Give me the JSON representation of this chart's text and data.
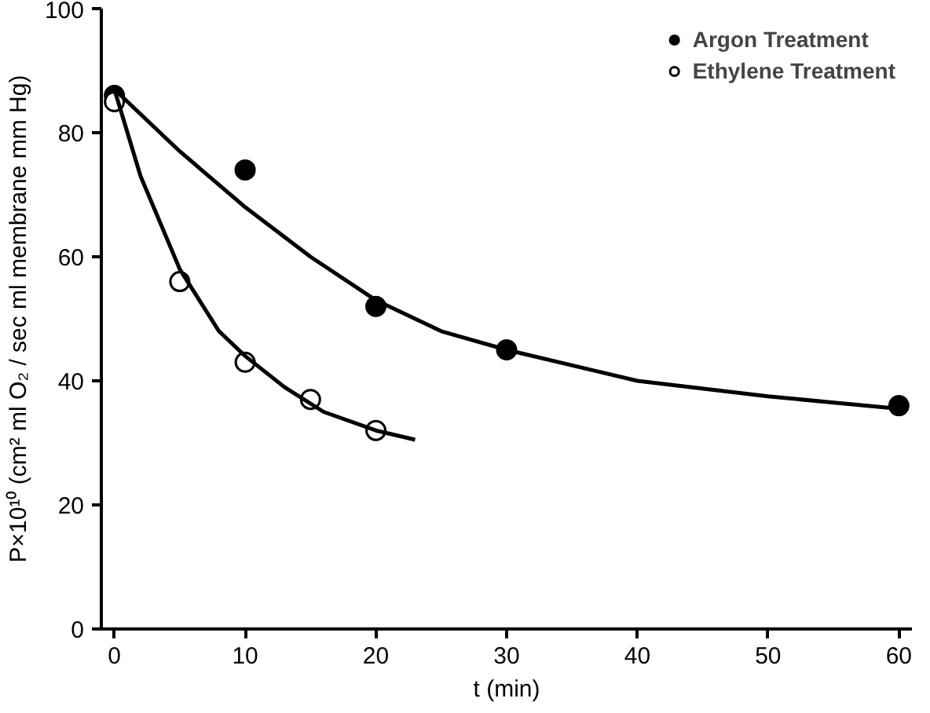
{
  "chart_data": {
    "type": "scatter",
    "xlabel": "t (min)",
    "ylabel": "P×10¹⁰ (cm² ml O₂ / sec ml membrane mm Hg)",
    "xlim": [
      -1,
      61
    ],
    "ylim": [
      0,
      100
    ],
    "xticks": [
      0,
      10,
      20,
      30,
      40,
      50,
      60
    ],
    "yticks": [
      0,
      20,
      40,
      60,
      80,
      100
    ],
    "grid": false,
    "legend": "top right",
    "series": [
      {
        "name": "Argon Treatment",
        "color": "#000000",
        "marker": "circle",
        "x": [
          0,
          10,
          20,
          30,
          60
        ],
        "values": [
          86,
          74,
          52,
          45,
          36
        ]
      },
      {
        "name": "Ethylene Treatment",
        "color": "#ffffff",
        "marker": "circle",
        "x": [
          0,
          5,
          10,
          15,
          20
        ],
        "values": [
          85,
          56,
          43,
          37,
          32
        ]
      },
      {
        "type": "line",
        "marker": "none",
        "color": "#000000",
        "x": [
          0,
          5,
          10,
          15,
          20,
          25,
          30,
          40,
          50,
          60
        ],
        "values": [
          87,
          77,
          68,
          60,
          53,
          48,
          45,
          40,
          37.5,
          35.5
        ]
      },
      {
        "type": "line",
        "marker": "none",
        "color": "#000000",
        "x": [
          0,
          2,
          5,
          8,
          10,
          13,
          16,
          20,
          23
        ],
        "values": [
          87,
          73,
          58,
          48,
          44,
          39,
          35,
          32,
          30.5
        ]
      }
    ]
  }
}
